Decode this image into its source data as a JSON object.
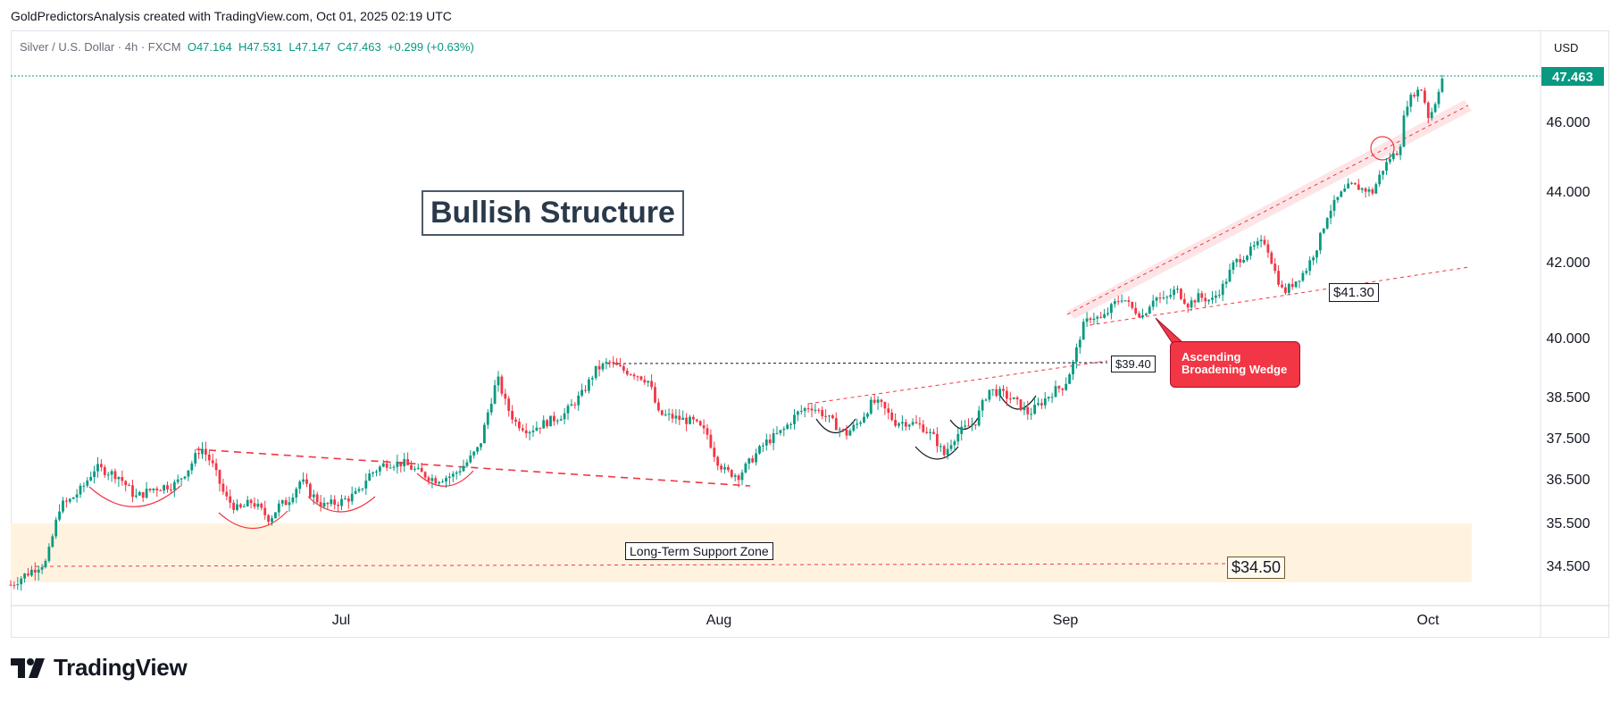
{
  "header": {
    "credit": "GoldPredictorsAnalysis created with TradingView.com, Oct 01, 2025 02:19 UTC"
  },
  "symbol": {
    "name": "Silver / U.S. Dollar · 4h · FXCM",
    "open": "O47.164",
    "high": "H47.531",
    "low": "L47.147",
    "close": "C47.463",
    "change": "+0.299 (+0.63%)"
  },
  "currency": "USD",
  "last_price_label": "47.463",
  "annotations": {
    "bullish_structure": "Bullish Structure",
    "support_zone": "Long-Term Support Zone",
    "support_price": "$34.50",
    "resistance_price": "$39.40",
    "wedge_support_price": "$41.30",
    "wedge_label": "Ascending Broadening Wedge"
  },
  "brand": {
    "name": "TradingView"
  },
  "colors": {
    "up": "#089981",
    "down": "#f23645",
    "accent_red": "#f23645",
    "zone": "#fff3e0",
    "price_badge": "#089981"
  },
  "chart_data": {
    "type": "candlestick",
    "title": "Silver / U.S. Dollar · 4h · FXCM",
    "ylabel": "USD",
    "ylim": [
      33.9,
      47.9
    ],
    "y_ticks": [
      34.5,
      35.5,
      36.5,
      37.5,
      38.5,
      40.0,
      42.0,
      44.0,
      46.0
    ],
    "y_tick_labels": [
      "34.500",
      "35.500",
      "36.500",
      "37.500",
      "38.500",
      "40.000",
      "42.000",
      "44.000",
      "46.000"
    ],
    "x_ticks": [
      "Jul",
      "Aug",
      "Sep",
      "Oct"
    ],
    "price_path": [
      [
        0,
        34.1
      ],
      [
        30,
        34.5
      ],
      [
        40,
        34.6
      ],
      [
        55,
        35.9
      ],
      [
        65,
        36.0
      ],
      [
        80,
        36.3
      ],
      [
        95,
        36.8
      ],
      [
        120,
        36.6
      ],
      [
        140,
        36.1
      ],
      [
        160,
        36.3
      ],
      [
        185,
        36.4
      ],
      [
        200,
        36.8
      ],
      [
        213,
        37.3
      ],
      [
        225,
        36.9
      ],
      [
        240,
        36.1
      ],
      [
        255,
        35.8
      ],
      [
        270,
        36.0
      ],
      [
        290,
        35.6
      ],
      [
        300,
        35.9
      ],
      [
        310,
        36.0
      ],
      [
        325,
        36.5
      ],
      [
        335,
        36.2
      ],
      [
        350,
        35.9
      ],
      [
        370,
        36.0
      ],
      [
        390,
        36.2
      ],
      [
        400,
        36.6
      ],
      [
        420,
        36.9
      ],
      [
        440,
        36.9
      ],
      [
        455,
        36.7
      ],
      [
        475,
        36.5
      ],
      [
        495,
        36.6
      ],
      [
        510,
        36.9
      ],
      [
        525,
        37.3
      ],
      [
        535,
        38.2
      ],
      [
        545,
        39.0
      ],
      [
        555,
        38.3
      ],
      [
        565,
        37.9
      ],
      [
        580,
        37.7
      ],
      [
        600,
        37.9
      ],
      [
        620,
        38.1
      ],
      [
        640,
        38.6
      ],
      [
        655,
        39.2
      ],
      [
        670,
        39.4
      ],
      [
        685,
        39.2
      ],
      [
        700,
        39.1
      ],
      [
        715,
        38.9
      ],
      [
        725,
        38.1
      ],
      [
        745,
        38.0
      ],
      [
        765,
        37.9
      ],
      [
        780,
        37.6
      ],
      [
        790,
        37.0
      ],
      [
        800,
        36.7
      ],
      [
        815,
        36.6
      ],
      [
        830,
        37.0
      ],
      [
        845,
        37.4
      ],
      [
        865,
        37.7
      ],
      [
        880,
        38.1
      ],
      [
        895,
        38.3
      ],
      [
        910,
        38.1
      ],
      [
        925,
        37.8
      ],
      [
        935,
        37.6
      ],
      [
        950,
        37.9
      ],
      [
        965,
        38.4
      ],
      [
        975,
        38.3
      ],
      [
        990,
        37.9
      ],
      [
        1005,
        37.9
      ],
      [
        1020,
        37.8
      ],
      [
        1035,
        37.5
      ],
      [
        1045,
        37.1
      ],
      [
        1055,
        37.5
      ],
      [
        1065,
        37.7
      ],
      [
        1080,
        37.9
      ],
      [
        1095,
        38.7
      ],
      [
        1110,
        38.6
      ],
      [
        1125,
        38.4
      ],
      [
        1140,
        38.1
      ],
      [
        1155,
        38.4
      ],
      [
        1170,
        38.7
      ],
      [
        1180,
        38.8
      ],
      [
        1190,
        39.4
      ],
      [
        1200,
        40.3
      ],
      [
        1210,
        40.6
      ],
      [
        1222,
        40.5
      ],
      [
        1235,
        40.9
      ],
      [
        1245,
        41.1
      ],
      [
        1255,
        40.8
      ],
      [
        1268,
        40.6
      ],
      [
        1280,
        41.1
      ],
      [
        1292,
        41.0
      ],
      [
        1305,
        41.3
      ],
      [
        1318,
        40.9
      ],
      [
        1330,
        41.1
      ],
      [
        1345,
        41.0
      ],
      [
        1358,
        41.4
      ],
      [
        1370,
        42.0
      ],
      [
        1382,
        42.2
      ],
      [
        1395,
        42.5
      ],
      [
        1405,
        42.6
      ],
      [
        1415,
        41.8
      ],
      [
        1425,
        41.2
      ],
      [
        1438,
        41.5
      ],
      [
        1450,
        41.8
      ],
      [
        1462,
        42.4
      ],
      [
        1475,
        43.4
      ],
      [
        1488,
        43.9
      ],
      [
        1500,
        44.2
      ],
      [
        1512,
        44.1
      ],
      [
        1525,
        44.0
      ],
      [
        1535,
        44.6
      ],
      [
        1545,
        45.0
      ],
      [
        1555,
        45.2
      ],
      [
        1562,
        46.5
      ],
      [
        1572,
        46.9
      ],
      [
        1580,
        47.0
      ],
      [
        1588,
        46.1
      ],
      [
        1595,
        46.6
      ],
      [
        1600,
        47.1
      ],
      [
        1605,
        47.463
      ]
    ],
    "series": [
      {
        "name": "Silver / U.S. Dollar",
        "last": 47.463
      }
    ]
  }
}
